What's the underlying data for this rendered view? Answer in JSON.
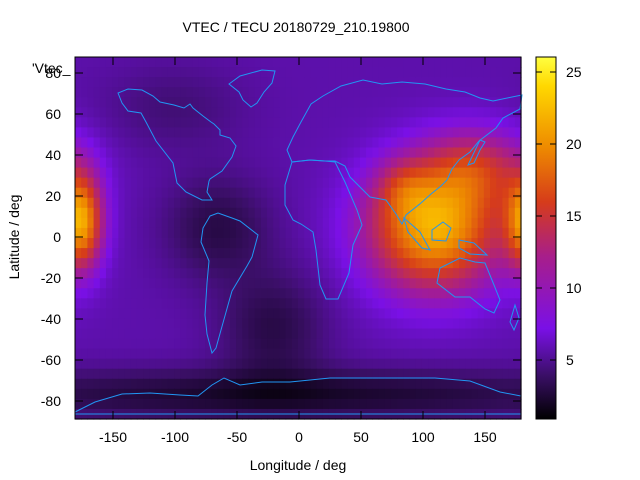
{
  "chart_data": {
    "type": "heatmap",
    "title": "VTEC / TECU 20180729_210.19800",
    "xlabel": "Longitude / deg",
    "ylabel": "Latitude / deg",
    "key_label": "'Vtec_",
    "xlim": [
      -180,
      180
    ],
    "ylim": [
      -90,
      90
    ],
    "x_ticks": [
      {
        "value": -150,
        "label": "-150"
      },
      {
        "value": -100,
        "label": "-100"
      },
      {
        "value": -50,
        "label": "-50"
      },
      {
        "value": 0,
        "label": "0"
      },
      {
        "value": 50,
        "label": "50"
      },
      {
        "value": 100,
        "label": "100"
      },
      {
        "value": 150,
        "label": "150"
      }
    ],
    "y_ticks": [
      {
        "value": 80,
        "label": "80"
      },
      {
        "value": 60,
        "label": "60"
      },
      {
        "value": 40,
        "label": "40"
      },
      {
        "value": 20,
        "label": "20"
      },
      {
        "value": 0,
        "label": "0"
      },
      {
        "value": -20,
        "label": "-20"
      },
      {
        "value": -40,
        "label": "-40"
      },
      {
        "value": -60,
        "label": "-60"
      },
      {
        "value": -80,
        "label": "-80"
      }
    ],
    "colorbar": {
      "range": [
        1,
        26
      ],
      "ticks": [
        {
          "value": 5,
          "label": "5"
        },
        {
          "value": 10,
          "label": "10"
        },
        {
          "value": 15,
          "label": "15"
        },
        {
          "value": 20,
          "label": "20"
        },
        {
          "value": 25,
          "label": "25"
        }
      ]
    },
    "grid": false,
    "coastline_color": "#2196f3",
    "colormap": [
      "#000000",
      "#3a0f66",
      "#7a10e6",
      "#a81e8a",
      "#d63c1a",
      "#ee8a00",
      "#ffd800",
      "#ffff40"
    ],
    "vtec_field": {
      "background": 6.5,
      "components": [
        {
          "lon": 110,
          "lat": 5,
          "sigma_lon": 38,
          "sigma_lat": 22,
          "value": 14
        },
        {
          "lon": 145,
          "lat": 35,
          "sigma_lon": 30,
          "sigma_lat": 14,
          "value": 6
        },
        {
          "lon": 85,
          "lat": 25,
          "sigma_lon": 15,
          "sigma_lat": 10,
          "value": 3
        },
        {
          "lon": -175,
          "lat": 8,
          "sigma_lon": 12,
          "sigma_lat": 16,
          "value": 12
        },
        {
          "lon": -65,
          "lat": 5,
          "sigma_lon": 30,
          "sigma_lat": 18,
          "value": -3
        },
        {
          "lon": -20,
          "lat": -45,
          "sigma_lon": 30,
          "sigma_lat": 20,
          "value": -3
        },
        {
          "lon": -10,
          "lat": -78,
          "sigma_lon": 200,
          "sigma_lat": 9,
          "value": -4
        },
        {
          "lon": -100,
          "lat": 65,
          "sigma_lon": 40,
          "sigma_lat": 15,
          "value": -1.5
        }
      ]
    }
  }
}
